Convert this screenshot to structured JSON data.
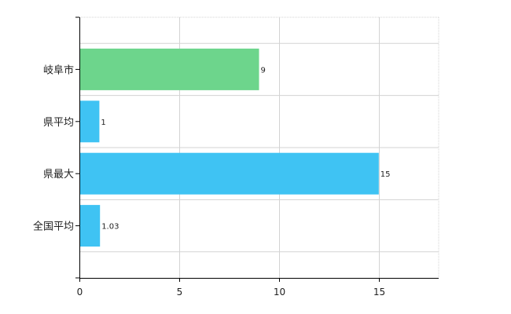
{
  "chart_data": {
    "type": "bar",
    "orientation": "horizontal",
    "categories": [
      "岐阜市",
      "県平均",
      "県最大",
      "全国平均"
    ],
    "values": [
      9,
      1,
      15,
      1.03
    ],
    "value_labels": [
      "9",
      "1",
      "15",
      "1.03"
    ],
    "bar_colors": [
      "#6dd58c",
      "#3fc3f3",
      "#3fc3f3",
      "#3fc3f3"
    ],
    "x_ticks": [
      0,
      5,
      10,
      15
    ],
    "xlim": [
      0,
      18
    ],
    "grid": true,
    "legend": "none"
  }
}
